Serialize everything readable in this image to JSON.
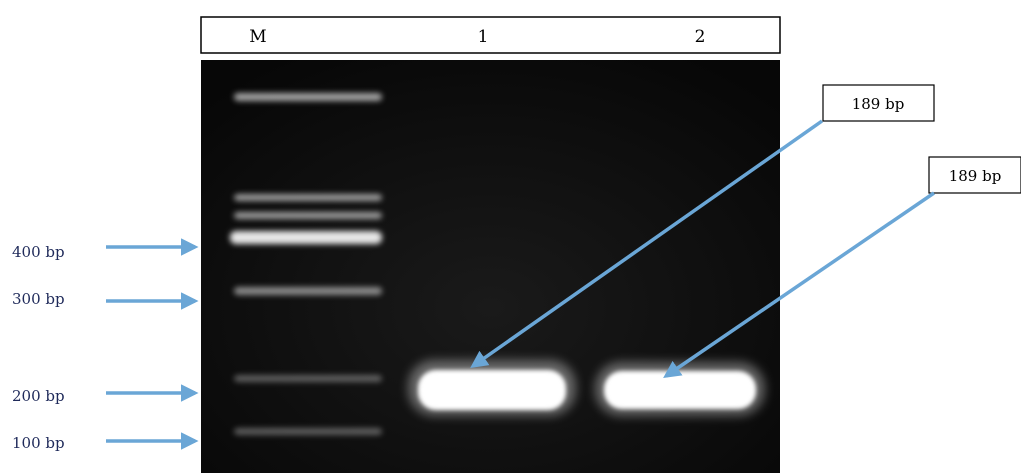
{
  "lane_header": {
    "marker": "M",
    "lane_1": "1",
    "lane_2": "2"
  },
  "ladder_labels": [
    {
      "text": "400 bp"
    },
    {
      "text": "300 bp"
    },
    {
      "text": "200 bp"
    },
    {
      "text": "100 bp"
    }
  ],
  "callouts": [
    {
      "text": "189 bp",
      "lane": "1"
    },
    {
      "text": "189 bp",
      "lane": "2"
    }
  ],
  "colors": {
    "arrow": "#6aa6d6",
    "gel_background": "#0c0c0c",
    "band": "#ffffff",
    "ladder_label": "#1f2a5a"
  }
}
